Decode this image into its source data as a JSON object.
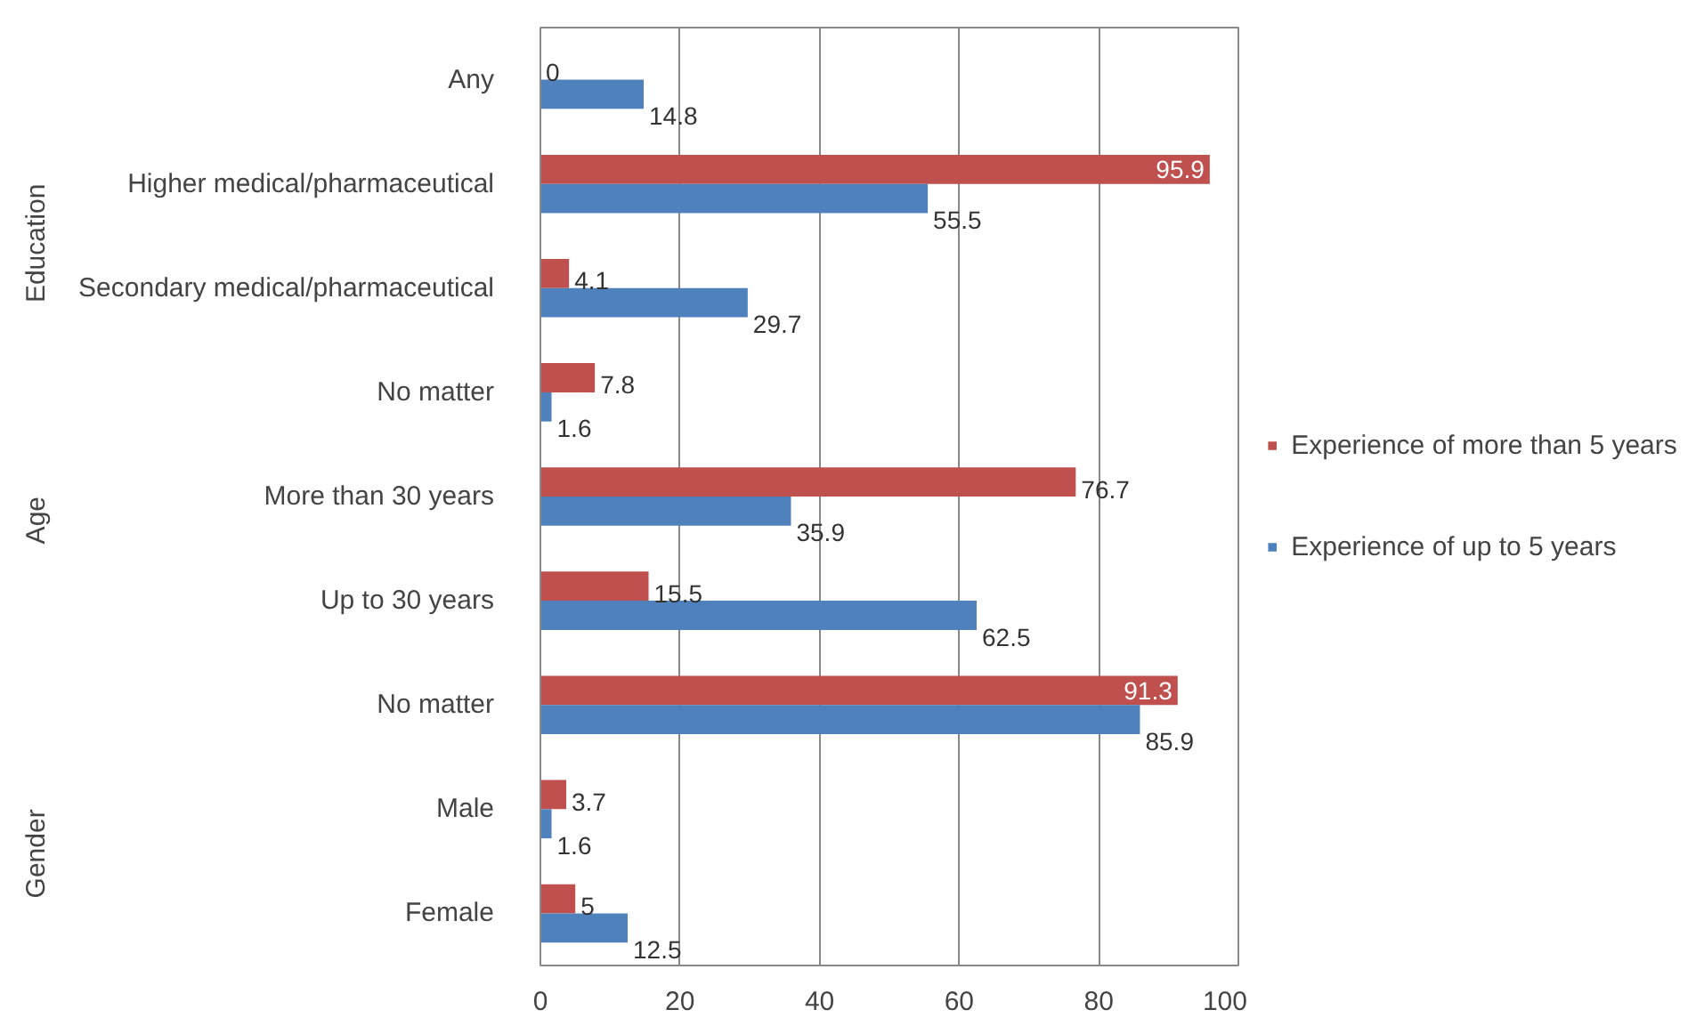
{
  "chart_data": {
    "type": "bar",
    "orientation": "horizontal",
    "categories": [
      "Any",
      "Higher medical/pharmaceutical",
      "Secondary medical/pharmaceutical",
      "No matter",
      "More than 30 years",
      "Up to 30 years",
      "No matter",
      "Male",
      "Female"
    ],
    "series": [
      {
        "name": "Experience of more than 5 years",
        "color": "#c0504d",
        "values": [
          0,
          95.9,
          4.1,
          7.8,
          76.7,
          15.5,
          91.3,
          3.7,
          5
        ]
      },
      {
        "name": "Experience of up to 5 years",
        "color": "#4f81bd",
        "values": [
          14.8,
          55.5,
          29.7,
          1.6,
          35.9,
          62.5,
          85.9,
          1.6,
          12.5
        ]
      }
    ],
    "annotations": [
      "Education",
      "Age",
      "Gender"
    ],
    "xlim": [
      0,
      100
    ],
    "xticks": [
      0,
      20,
      40,
      60,
      80,
      100
    ],
    "grid": "x",
    "legend": "right",
    "data_labels": true
  }
}
